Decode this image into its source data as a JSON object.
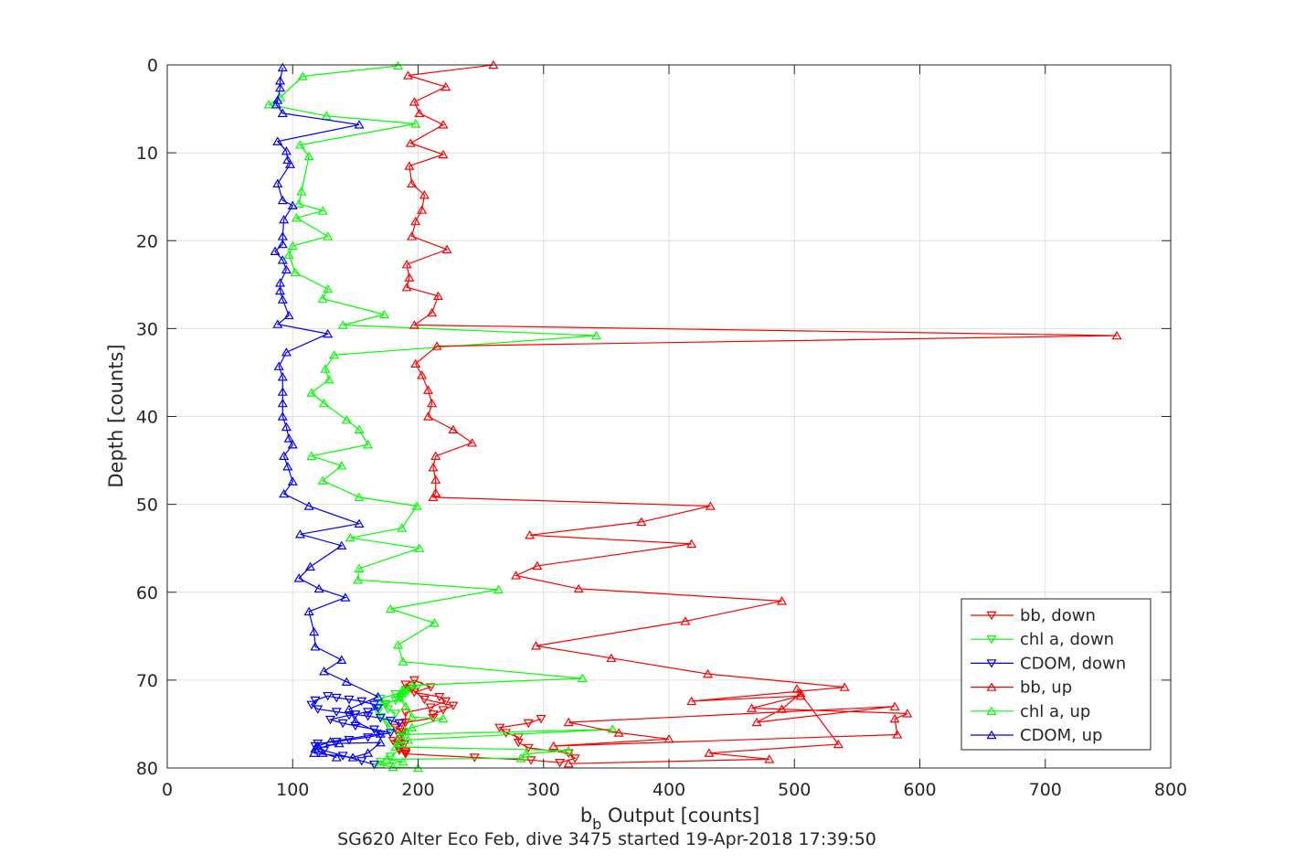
{
  "chart_data": {
    "type": "line",
    "title": "",
    "xlabel": "b_b Output [counts]",
    "xlabel_main": "b",
    "xlabel_sub": "b",
    "xlabel_rest": " Output [counts]",
    "ylabel": "Depth [counts]",
    "footer": "SG620 Alter Eco Feb, dive 3475 started 19-Apr-2018 17:39:50",
    "xlim": [
      0,
      800
    ],
    "ylim": [
      0,
      80
    ],
    "y_reversed": true,
    "grid": true,
    "legend_position": "right-bottom-inside",
    "x_ticks": [
      "0",
      "100",
      "200",
      "300",
      "400",
      "500",
      "600",
      "700",
      "800"
    ],
    "y_ticks": [
      "0",
      "10",
      "20",
      "30",
      "40",
      "50",
      "60",
      "70",
      "80"
    ],
    "series": [
      {
        "name": "bb, down",
        "color": "#ff0000",
        "marker": "triangle-down",
        "x": [
          190,
          185,
          187,
          187,
          190,
          190,
          210,
          222,
          217,
          197,
          210,
          197,
          190,
          195,
          205,
          228,
          220,
          212,
          212,
          187,
          182,
          188,
          185,
          180,
          189,
          185,
          190,
          190,
          245,
          290,
          313,
          325,
          320,
          288,
          280,
          280,
          270,
          265,
          288,
          298
        ],
        "y": [
          78.3,
          78.0,
          77.2,
          75.9,
          74.8,
          73.7,
          73.1,
          72.4,
          71.9,
          71.4,
          70.8,
          70.0,
          70.5,
          71.0,
          72.2,
          72.9,
          73.4,
          73.9,
          74.3,
          74.9,
          75.4,
          75.9,
          76.3,
          76.9,
          77.3,
          77.7,
          78.1,
          78.4,
          78.8,
          79.1,
          79.4,
          78.9,
          78.3,
          77.7,
          77.1,
          76.5,
          76.0,
          75.4,
          74.9,
          74.4
        ]
      },
      {
        "name": "chl a, down",
        "color": "#00ff00",
        "marker": "triangle-down",
        "x": [
          165,
          170,
          178,
          185,
          182,
          188,
          178,
          175,
          170,
          168,
          168,
          174,
          182,
          186,
          190,
          193,
          200,
          190,
          182,
          170,
          174,
          176,
          182
        ],
        "y": [
          79.6,
          79.3,
          78.7,
          77.9,
          77.2,
          76.4,
          75.6,
          74.8,
          74.2,
          73.6,
          73.1,
          72.7,
          72.3,
          72.0,
          71.5,
          71.0,
          70.6,
          71.1,
          71.6,
          72.1,
          72.8,
          73.3,
          73.8
        ]
      },
      {
        "name": "CDOM, down",
        "color": "#0000ff",
        "marker": "triangle-down",
        "x": [
          165,
          155,
          140,
          125,
          118,
          120,
          135,
          145,
          160,
          170,
          178,
          165,
          150,
          140,
          130,
          145,
          160,
          168,
          165,
          155,
          145,
          135,
          128,
          118,
          115,
          120,
          135,
          150,
          160,
          170,
          178,
          185
        ],
        "y": [
          79.6,
          79.2,
          78.6,
          78.0,
          77.5,
          77.2,
          77.0,
          76.8,
          76.5,
          76.2,
          76.0,
          75.6,
          75.2,
          74.9,
          74.5,
          74.0,
          73.6,
          73.2,
          72.8,
          72.4,
          72.2,
          72.0,
          71.8,
          72.3,
          72.8,
          73.3,
          73.6,
          73.9,
          74.1,
          74.3,
          74.6,
          74.9
        ]
      },
      {
        "name": "bb, up",
        "color": "#ff0000",
        "marker": "triangle-up",
        "x": [
          260,
          192,
          222,
          197,
          201,
          220,
          194,
          220,
          193,
          195,
          205,
          203,
          198,
          195,
          223,
          191,
          193,
          191,
          216,
          211,
          197,
          757,
          215,
          198,
          203,
          208,
          211,
          208,
          228,
          243,
          214,
          212,
          214,
          214,
          212,
          433,
          378,
          289,
          418,
          295,
          278,
          328,
          490,
          413,
          294,
          354,
          431,
          540,
          418,
          505,
          466,
          590,
          580,
          582,
          308,
          400,
          360,
          320,
          580,
          470,
          490,
          505,
          502,
          535,
          432,
          480,
          320
        ],
        "y": [
          0,
          1.2,
          2.5,
          4.2,
          5.5,
          6.8,
          8.9,
          10.2,
          11.5,
          13.5,
          14.8,
          16.5,
          17.8,
          19.5,
          21.0,
          22.7,
          24.2,
          25.3,
          26.3,
          28.2,
          29.6,
          30.8,
          32.0,
          34.0,
          35.3,
          37.0,
          38.5,
          40.0,
          41.5,
          43.0,
          44.5,
          45.8,
          47.2,
          48.7,
          49.2,
          50.2,
          52.0,
          53.5,
          54.5,
          57.0,
          58.1,
          59.6,
          61.0,
          63.3,
          66.1,
          67.5,
          69.3,
          70.8,
          72.4,
          71.8,
          73.2,
          73.8,
          74.4,
          76.2,
          77.5,
          76.7,
          76.0,
          74.8,
          73.0,
          74.8,
          73.3,
          71.5,
          71.0,
          77.3,
          78.3,
          79.0,
          79.5
        ]
      },
      {
        "name": "chl a, up",
        "color": "#00ff00",
        "marker": "triangle-up",
        "x": [
          184,
          108,
          90,
          81,
          127,
          198,
          106,
          113,
          107,
          105,
          124,
          103,
          128,
          100,
          97,
          102,
          128,
          124,
          173,
          140,
          342,
          133,
          126,
          129,
          115,
          125,
          143,
          153,
          160,
          115,
          139,
          124,
          153,
          199,
          187,
          146,
          201,
          153,
          152,
          264,
          178,
          213,
          184,
          188,
          331,
          195,
          188,
          186,
          185,
          190,
          195,
          220,
          195,
          190,
          185,
          355,
          192,
          185,
          182,
          320,
          286,
          282,
          175,
          188,
          170,
          180,
          200
        ],
        "y": [
          0.1,
          1.3,
          3.7,
          4.5,
          5.8,
          6.7,
          9.1,
          10.4,
          14.4,
          15.8,
          16.6,
          17.4,
          19.5,
          20.6,
          21.6,
          23.6,
          25.5,
          26.6,
          28.4,
          29.6,
          30.8,
          33.0,
          34.6,
          35.8,
          37.3,
          38.5,
          40.4,
          41.5,
          43.2,
          44.5,
          45.6,
          47.3,
          49.2,
          50.2,
          52.7,
          53.8,
          55.0,
          57.3,
          58.6,
          59.7,
          61.9,
          63.5,
          66.0,
          67.9,
          69.8,
          70.6,
          71.2,
          71.5,
          72.0,
          73.0,
          74.2,
          74.4,
          75.4,
          75.8,
          76.2,
          75.6,
          76.8,
          77.2,
          77.6,
          78.0,
          78.4,
          78.9,
          79.0,
          79.3,
          79.6,
          79.9,
          80.0
        ],
        "x2": [],
        "y2": []
      },
      {
        "name": "CDOM, up",
        "color": "#0000ff",
        "marker": "triangle-up",
        "x": [
          92,
          90,
          90,
          88,
          87,
          92,
          153,
          88,
          95,
          96,
          98,
          88,
          92,
          100,
          93,
          92,
          92,
          86,
          92,
          95,
          90,
          90,
          92,
          97,
          88,
          128,
          95,
          89,
          92,
          92,
          92,
          92,
          95,
          97,
          100,
          93,
          96,
          100,
          93,
          113,
          153,
          106,
          139,
          114,
          105,
          121,
          142,
          113,
          117,
          118,
          139,
          125,
          143,
          168,
          145,
          150,
          170,
          130,
          120,
          117,
          148,
          160,
          170,
          137,
          118,
          124,
          135
        ],
        "y": [
          0.3,
          1.8,
          2.6,
          4.0,
          4.5,
          5.5,
          6.8,
          8.7,
          9.8,
          10.8,
          11.3,
          13.5,
          15.4,
          16.0,
          17.6,
          19.5,
          20.4,
          21.2,
          22.2,
          23.3,
          24.8,
          25.7,
          26.7,
          28.5,
          29.5,
          30.6,
          32.7,
          34.3,
          35.5,
          37.2,
          38.5,
          40.0,
          41.2,
          42.5,
          43.2,
          44.5,
          45.7,
          47.4,
          48.8,
          50.2,
          52.2,
          53.4,
          54.7,
          57.1,
          58.4,
          59.6,
          60.6,
          62.2,
          64.5,
          66.2,
          67.7,
          69.0,
          70.2,
          71.9,
          73.3,
          74.7,
          76.1,
          77.0,
          77.5,
          78.3,
          78.8,
          78.3,
          77.1,
          77.2,
          77.8,
          78.3,
          78.8
        ]
      }
    ]
  }
}
